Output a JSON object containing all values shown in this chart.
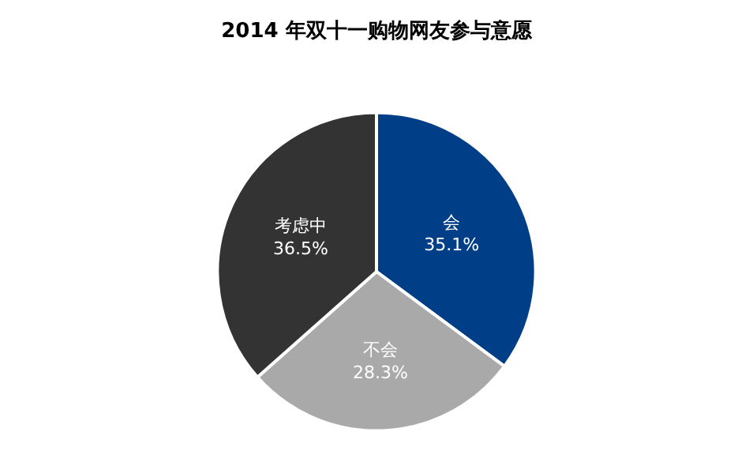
{
  "chart_data": {
    "type": "pie",
    "title": "2014 年双十一购物网友参与意愿",
    "categories": [
      "会",
      "不会",
      "考虑中"
    ],
    "values": [
      35.1,
      28.3,
      36.5
    ],
    "value_labels": [
      "35.1%",
      "28.3%",
      "36.5%"
    ],
    "colors": [
      "#003f87",
      "#a9a9a9",
      "#333333"
    ],
    "legend": false
  }
}
